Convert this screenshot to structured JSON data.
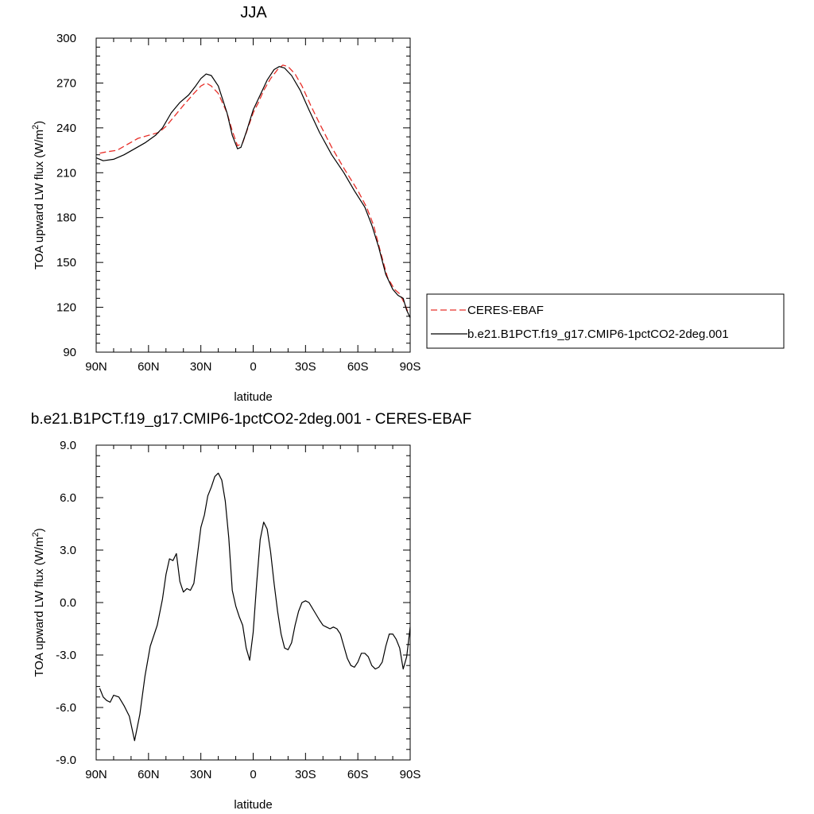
{
  "chart_data": [
    {
      "type": "line",
      "title": "JJA",
      "xlabel": "latitude",
      "ylabel": "TOA upward LW flux (W/m",
      "ylabel_sup": "2",
      "ylabel_close": ")",
      "xlim": [
        90,
        -90
      ],
      "ylim": [
        90,
        300
      ],
      "xticks": [
        90,
        60,
        30,
        0,
        -30,
        -60,
        -90
      ],
      "xtick_labels": [
        "90N",
        "60N",
        "30N",
        "0",
        "30S",
        "60S",
        "90S"
      ],
      "yticks": [
        90,
        120,
        150,
        180,
        210,
        240,
        270,
        300
      ],
      "ytick_labels": [
        "90",
        "120",
        "150",
        "180",
        "210",
        "240",
        "270",
        "300"
      ],
      "legend": {
        "placement": "right",
        "entries": [
          "CERES-EBAF",
          "b.e21.B1PCT.f19_g17.CMIP6-1pctCO2-2deg.001"
        ]
      },
      "series": [
        {
          "name": "CERES-EBAF",
          "color": "#e8302a",
          "dash": "dashed",
          "points": [
            [
              88,
              223
            ],
            [
              84,
              224
            ],
            [
              78,
              225
            ],
            [
              72,
              229
            ],
            [
              66,
              233
            ],
            [
              60,
              235
            ],
            [
              54,
              237
            ],
            [
              50,
              241
            ],
            [
              45,
              248
            ],
            [
              40,
              255
            ],
            [
              34,
              263
            ],
            [
              30,
              268
            ],
            [
              27,
              270
            ],
            [
              24,
              268
            ],
            [
              20,
              263
            ],
            [
              15,
              250
            ],
            [
              12,
              238
            ],
            [
              9,
              228
            ],
            [
              6,
              230
            ],
            [
              3,
              240
            ],
            [
              0,
              250
            ],
            [
              -3,
              257
            ],
            [
              -6,
              265
            ],
            [
              -10,
              273
            ],
            [
              -14,
              279
            ],
            [
              -17,
              282
            ],
            [
              -20,
              281
            ],
            [
              -24,
              276
            ],
            [
              -28,
              268
            ],
            [
              -33,
              255
            ],
            [
              -38,
              243
            ],
            [
              -45,
              227
            ],
            [
              -52,
              213
            ],
            [
              -60,
              198
            ],
            [
              -65,
              187
            ],
            [
              -69,
              175
            ],
            [
              -73,
              157
            ],
            [
              -77,
              140
            ],
            [
              -81,
              132
            ],
            [
              -84,
              129
            ],
            [
              -87,
              122
            ],
            [
              -89,
              116
            ]
          ]
        },
        {
          "name": "b.e21.B1PCT.f19_g17.CMIP6-1pctCO2-2deg.001",
          "color": "#000000",
          "dash": "solid",
          "points": [
            [
              90,
              220
            ],
            [
              86,
              218
            ],
            [
              80,
              219
            ],
            [
              74,
              222
            ],
            [
              68,
              226
            ],
            [
              62,
              230
            ],
            [
              56,
              235
            ],
            [
              52,
              240
            ],
            [
              47,
              250
            ],
            [
              42,
              257
            ],
            [
              37,
              262
            ],
            [
              33,
              268
            ],
            [
              30,
              273
            ],
            [
              27,
              276
            ],
            [
              24,
              275
            ],
            [
              20,
              268
            ],
            [
              15,
              250
            ],
            [
              12,
              235
            ],
            [
              9,
              226
            ],
            [
              7,
              227
            ],
            [
              4,
              237
            ],
            [
              0,
              252
            ],
            [
              -4,
              262
            ],
            [
              -8,
              272
            ],
            [
              -12,
              279
            ],
            [
              -15,
              281
            ],
            [
              -18,
              280
            ],
            [
              -22,
              275
            ],
            [
              -27,
              265
            ],
            [
              -32,
              252
            ],
            [
              -38,
              237
            ],
            [
              -45,
              222
            ],
            [
              -52,
              210
            ],
            [
              -58,
              198
            ],
            [
              -64,
              187
            ],
            [
              -68,
              175
            ],
            [
              -72,
              160
            ],
            [
              -76,
              142
            ],
            [
              -80,
              132
            ],
            [
              -83,
              128
            ],
            [
              -86,
              126
            ],
            [
              -88,
              118
            ],
            [
              -90,
              113
            ]
          ]
        }
      ]
    },
    {
      "type": "line",
      "title": "b.e21.B1PCT.f19_g17.CMIP6-1pctCO2-2deg.001 - CERES-EBAF",
      "xlabel": "latitude",
      "ylabel": "TOA upward LW flux (W/m",
      "ylabel_sup": "2",
      "ylabel_close": ")",
      "xlim": [
        90,
        -90
      ],
      "ylim": [
        -9,
        9
      ],
      "xticks": [
        90,
        60,
        30,
        0,
        -30,
        -60,
        -90
      ],
      "xtick_labels": [
        "90N",
        "60N",
        "30N",
        "0",
        "30S",
        "60S",
        "90S"
      ],
      "yticks": [
        -9,
        -6,
        -3,
        0,
        3,
        6,
        9
      ],
      "ytick_labels": [
        "-9.0",
        "-6.0",
        "-3.0",
        "0.0",
        "3.0",
        "6.0",
        "9.0"
      ],
      "series": [
        {
          "color": "#000000",
          "dash": "solid",
          "points": [
            [
              88,
              -4.9
            ],
            [
              86,
              -5.4
            ],
            [
              84,
              -5.6
            ],
            [
              82,
              -5.7
            ],
            [
              80,
              -5.3
            ],
            [
              77,
              -5.4
            ],
            [
              74,
              -5.9
            ],
            [
              71,
              -6.5
            ],
            [
              68,
              -7.9
            ],
            [
              65,
              -6.4
            ],
            [
              62,
              -4.2
            ],
            [
              59,
              -2.5
            ],
            [
              55,
              -1.3
            ],
            [
              52,
              0.2
            ],
            [
              50,
              1.6
            ],
            [
              48,
              2.5
            ],
            [
              46,
              2.4
            ],
            [
              44,
              2.8
            ],
            [
              42,
              1.2
            ],
            [
              40,
              0.6
            ],
            [
              38,
              0.8
            ],
            [
              36,
              0.7
            ],
            [
              34,
              1.1
            ],
            [
              32,
              2.7
            ],
            [
              30,
              4.3
            ],
            [
              28,
              5.0
            ],
            [
              26,
              6.1
            ],
            [
              24,
              6.6
            ],
            [
              22,
              7.2
            ],
            [
              20,
              7.4
            ],
            [
              18,
              7.0
            ],
            [
              16,
              5.8
            ],
            [
              14,
              3.7
            ],
            [
              12,
              0.7
            ],
            [
              10,
              -0.2
            ],
            [
              8,
              -0.8
            ],
            [
              6,
              -1.3
            ],
            [
              4,
              -2.6
            ],
            [
              2,
              -3.3
            ],
            [
              0,
              -1.7
            ],
            [
              -2,
              1.1
            ],
            [
              -4,
              3.6
            ],
            [
              -6,
              4.6
            ],
            [
              -8,
              4.2
            ],
            [
              -10,
              2.9
            ],
            [
              -12,
              1.1
            ],
            [
              -14,
              -0.5
            ],
            [
              -16,
              -1.8
            ],
            [
              -18,
              -2.6
            ],
            [
              -20,
              -2.7
            ],
            [
              -22,
              -2.3
            ],
            [
              -24,
              -1.3
            ],
            [
              -26,
              -0.5
            ],
            [
              -28,
              0.0
            ],
            [
              -30,
              0.1
            ],
            [
              -32,
              0.0
            ],
            [
              -35,
              -0.5
            ],
            [
              -38,
              -1.0
            ],
            [
              -40,
              -1.3
            ],
            [
              -42,
              -1.4
            ],
            [
              -44,
              -1.5
            ],
            [
              -46,
              -1.4
            ],
            [
              -48,
              -1.5
            ],
            [
              -50,
              -1.8
            ],
            [
              -52,
              -2.5
            ],
            [
              -54,
              -3.2
            ],
            [
              -56,
              -3.6
            ],
            [
              -58,
              -3.7
            ],
            [
              -60,
              -3.4
            ],
            [
              -62,
              -2.9
            ],
            [
              -64,
              -2.9
            ],
            [
              -66,
              -3.1
            ],
            [
              -68,
              -3.6
            ],
            [
              -70,
              -3.8
            ],
            [
              -72,
              -3.7
            ],
            [
              -74,
              -3.4
            ],
            [
              -76,
              -2.5
            ],
            [
              -78,
              -1.8
            ],
            [
              -80,
              -1.8
            ],
            [
              -82,
              -2.1
            ],
            [
              -84,
              -2.6
            ],
            [
              -86,
              -3.8
            ],
            [
              -88,
              -3.1
            ],
            [
              -90,
              -1.4
            ]
          ]
        }
      ]
    }
  ]
}
